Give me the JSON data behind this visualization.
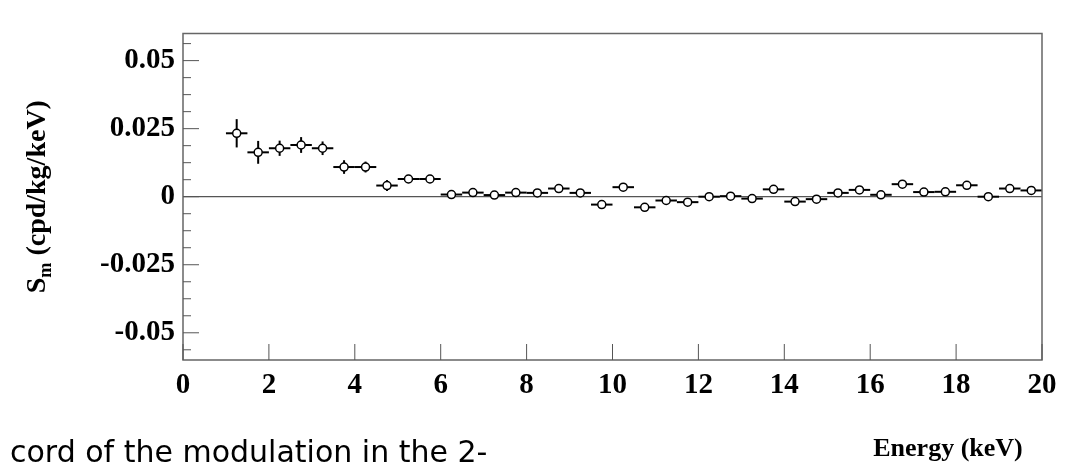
{
  "chart_data": {
    "type": "scatter",
    "xlabel": "Energy (keV)",
    "ylabel": "S$_{m}$ (cpd/kg/keV)",
    "annotations": [
      "cord of the modulation in the 2-"
    ],
    "xlim": [
      0,
      20
    ],
    "ylim": [
      -0.06,
      0.06
    ],
    "xticks": [
      0,
      2,
      4,
      6,
      8,
      10,
      12,
      14,
      16,
      18,
      20
    ],
    "yticks": [
      {
        "value": -0.05625,
        "label": null
      },
      -0.05,
      {
        "value": -0.04375,
        "label": null
      },
      {
        "value": -0.0375,
        "label": null
      },
      {
        "value": -0.03125,
        "label": null
      },
      {
        "value": -0.025,
        "label": "-0.025"
      },
      {
        "value": -0.01875,
        "label": null
      },
      {
        "value": -0.0125,
        "label": null
      },
      {
        "value": -0.00625,
        "label": null
      },
      0,
      {
        "value": 0.00625,
        "label": null
      },
      {
        "value": 0.0125,
        "label": null
      },
      {
        "value": 0.01875,
        "label": null
      },
      0.025,
      {
        "value": 0.03125,
        "label": null
      },
      {
        "value": 0.0375,
        "label": null
      },
      {
        "value": 0.04375,
        "label": null
      },
      0.05,
      {
        "value": 0.05625,
        "label": null
      }
    ],
    "marker": "circle",
    "grid": false,
    "ref_lines": [
      {
        "axis": "y",
        "value": 0,
        "color": "#555555"
      }
    ],
    "series": [
      {
        "color": "#000000",
        "x": [
          1.25,
          1.75,
          2.25,
          2.75,
          3.25,
          3.75,
          4.25,
          4.75,
          5.25,
          5.75,
          6.25,
          6.75,
          7.25,
          7.75,
          8.25,
          8.75,
          9.25,
          9.75,
          10.25,
          10.75,
          11.25,
          11.75,
          12.25,
          12.75,
          13.25,
          13.75,
          14.25,
          14.75,
          15.25,
          15.75,
          16.25,
          16.75,
          17.25,
          17.75,
          18.25,
          18.75,
          19.25,
          19.75
        ],
        "values": [
          0.0233,
          0.0163,
          0.0178,
          0.019,
          0.0178,
          0.0109,
          0.0109,
          0.0041,
          0.0065,
          0.0065,
          0.0008,
          0.0015,
          0.0006,
          0.0015,
          0.0014,
          0.003,
          0.0014,
          -0.0029,
          0.0035,
          -0.0039,
          -0.0014,
          -0.002,
          0,
          0.0002,
          -0.0007,
          0.0027,
          -0.0018,
          -0.0009,
          0.0014,
          0.0025,
          0.0007,
          0.0046,
          0.0017,
          0.0018,
          0.0042,
          0,
          0.003,
          0.0023
        ],
        "errors": [
          0.0052,
          0.0042,
          0.0028,
          0.0029,
          0.0025,
          0.0025,
          0.002,
          0.002,
          0.0015,
          0.0015,
          0.001,
          0.001,
          0.001,
          0.001,
          0.001,
          0.001,
          0.001,
          0.001,
          0.001,
          0.001,
          0.001,
          0.001,
          0.001,
          0.001,
          0.001,
          0.001,
          0.001,
          0.001,
          0.001,
          0.001,
          0.001,
          0.001,
          0.001,
          0.001,
          0.001,
          0.001,
          0.001,
          0.001
        ],
        "xerrors": [
          0.25,
          0.25,
          0.25,
          0.25,
          0.25,
          0.25,
          0.25,
          0.25,
          0.25,
          0.25,
          0.25,
          0.25,
          0.25,
          0.25,
          0.25,
          0.25,
          0.25,
          0.25,
          0.25,
          0.25,
          0.25,
          0.25,
          0.25,
          0.25,
          0.25,
          0.25,
          0.25,
          0.25,
          0.25,
          0.25,
          0.25,
          0.25,
          0.25,
          0.25,
          0.25,
          0.25,
          0.25,
          0.25
        ]
      }
    ]
  }
}
